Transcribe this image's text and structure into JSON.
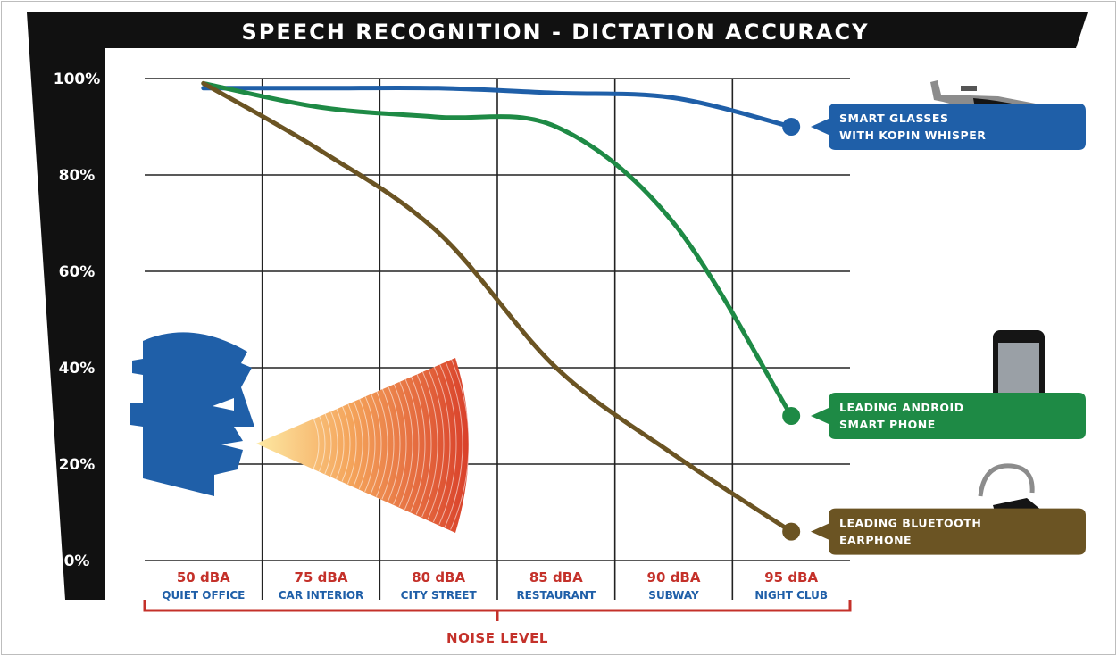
{
  "chart_data": {
    "type": "line",
    "title": "SPEECH RECOGNITION - DICTATION ACCURACY",
    "xlabel": "NOISE LEVEL",
    "ylabel": "",
    "ylim": [
      0,
      100
    ],
    "y_ticks": [
      "0%",
      "20%",
      "40%",
      "60%",
      "80%",
      "100%"
    ],
    "categories": [
      {
        "db": "50 dBA",
        "place": "QUIET OFFICE"
      },
      {
        "db": "75 dBA",
        "place": "CAR INTERIOR"
      },
      {
        "db": "80 dBA",
        "place": "CITY STREET"
      },
      {
        "db": "85 dBA",
        "place": "RESTAURANT"
      },
      {
        "db": "90 dBA",
        "place": "SUBWAY"
      },
      {
        "db": "95 dBA",
        "place": "NIGHT CLUB"
      }
    ],
    "series": [
      {
        "name": "SMART GLASSES WITH KOPIN WHISPER",
        "label_lines": [
          "SMART GLASSES",
          "WITH KOPIN WHISPER"
        ],
        "color": "#1f5fa8",
        "values": [
          98,
          98,
          98,
          97,
          96,
          90
        ]
      },
      {
        "name": "LEADING ANDROID SMART PHONE",
        "label_lines": [
          "LEADING ANDROID",
          "SMART PHONE"
        ],
        "color": "#1e8a45",
        "values": [
          99,
          94,
          92,
          90,
          70,
          30
        ]
      },
      {
        "name": "LEADING BLUETOOTH EARPHONE",
        "label_lines": [
          "LEADING BLUETOOTH",
          "EARPHONE"
        ],
        "color": "#6b5423",
        "values": [
          99,
          85,
          68,
          40,
          22,
          6
        ]
      }
    ],
    "grid": true,
    "legend": "right",
    "colors": {
      "tick_db": "#c4312a",
      "tick_place": "#1f5fa8",
      "axis_bracket": "#c4312a",
      "header_bg": "#111111",
      "head_icon": "#1f5fa8"
    }
  }
}
